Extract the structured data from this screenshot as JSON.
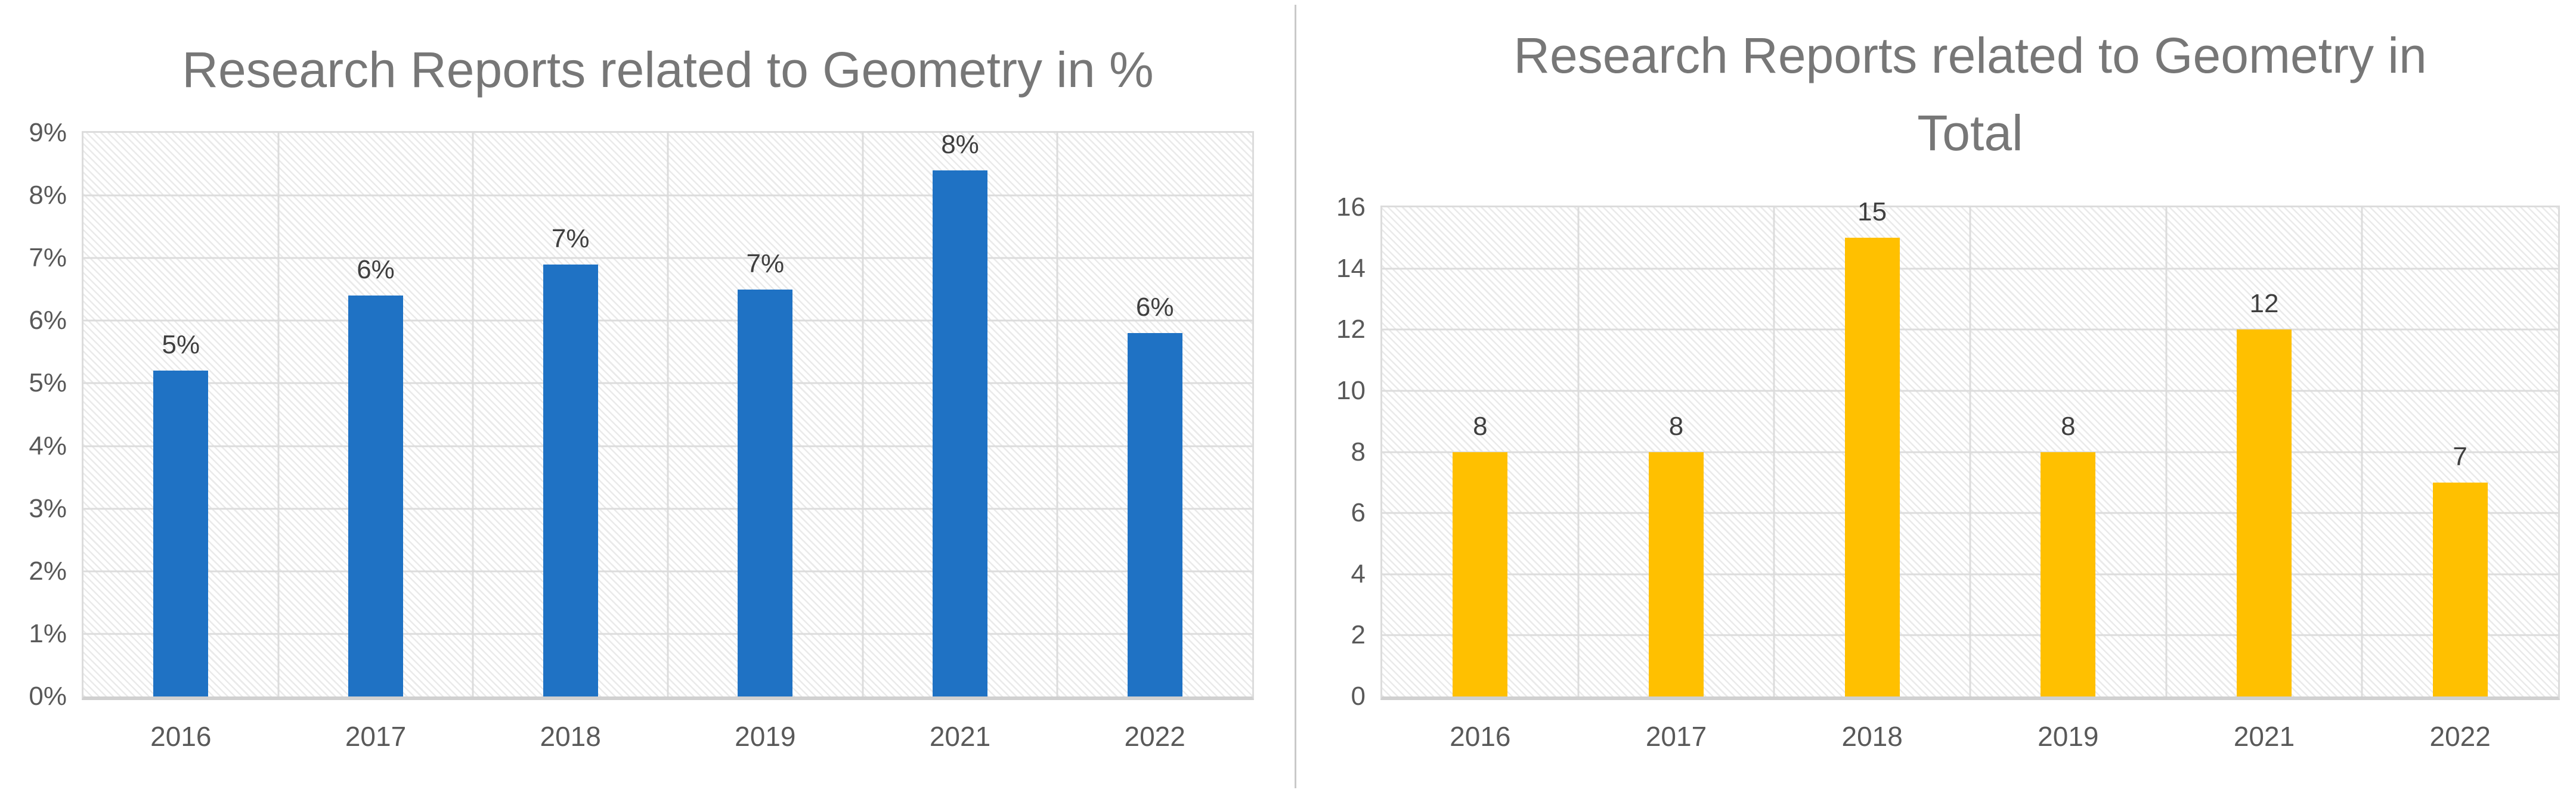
{
  "styles": {
    "background": "#FFFFFF",
    "title_color": "#777777",
    "axis_text_color": "#595959",
    "data_label_color": "#3F3F3F",
    "gridline_color": "#DCDCDC",
    "axis_line_color": "#D0D0D0",
    "divider_color": "#C9C9C9",
    "hatch_color": "#EAEAEA",
    "blue_accent": "#1F72C4",
    "gold_accent": "#FFC000"
  },
  "chart_data": [
    {
      "type": "bar",
      "title": "Research Reports related to Geometry in %",
      "title_lines": [
        "Research Reports related to Geometry in %"
      ],
      "categories": [
        "2016",
        "2017",
        "2018",
        "2019",
        "2021",
        "2022"
      ],
      "values": [
        5.2,
        6.4,
        6.9,
        6.5,
        8.4,
        5.8
      ],
      "data_labels": [
        "5%",
        "6%",
        "7%",
        "7%",
        "8%",
        "6%"
      ],
      "xlabel": "",
      "ylabel": "",
      "ylim": [
        0,
        9
      ],
      "y_ticks": {
        "min": 0,
        "max": 9,
        "step": 1,
        "labels": [
          "0%",
          "1%",
          "2%",
          "3%",
          "4%",
          "5%",
          "6%",
          "7%",
          "8%",
          "9%"
        ]
      },
      "grid": true,
      "legend": "none",
      "bar_color": "#1F72C4",
      "plot_background": "diagonal-hatch"
    },
    {
      "type": "bar",
      "title": "Research Reports related to Geometry in Total",
      "title_lines": [
        "Research Reports related to Geometry in",
        "Total"
      ],
      "categories": [
        "2016",
        "2017",
        "2018",
        "2019",
        "2021",
        "2022"
      ],
      "values": [
        8,
        8,
        15,
        8,
        12,
        7
      ],
      "data_labels": [
        "8",
        "8",
        "15",
        "8",
        "12",
        "7"
      ],
      "xlabel": "",
      "ylabel": "",
      "ylim": [
        0,
        16
      ],
      "y_ticks": {
        "min": 0,
        "max": 16,
        "step": 2,
        "labels": [
          "0",
          "2",
          "4",
          "6",
          "8",
          "10",
          "12",
          "14",
          "16"
        ]
      },
      "grid": true,
      "legend": "none",
      "bar_color": "#FFC000",
      "plot_background": "diagonal-hatch"
    }
  ]
}
